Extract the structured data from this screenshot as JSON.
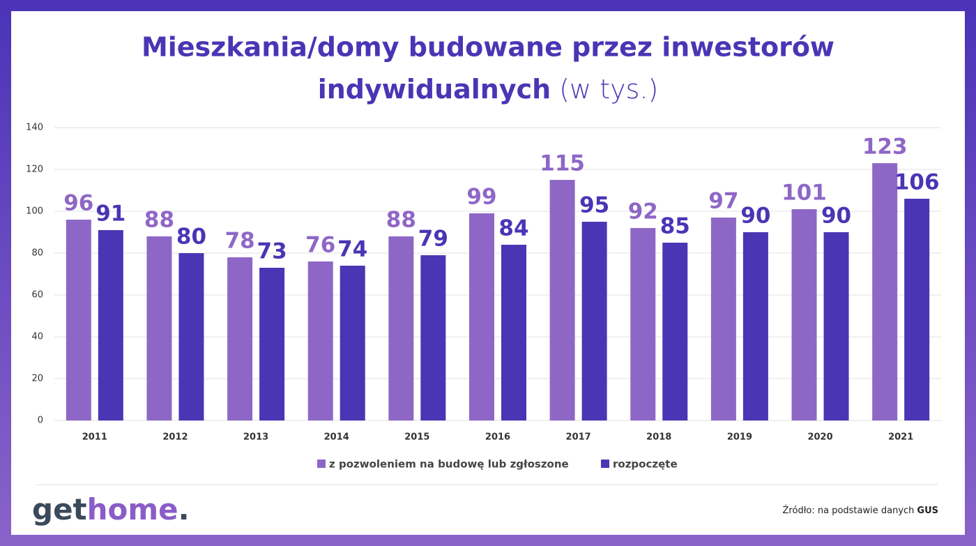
{
  "chart_data": {
    "type": "bar",
    "title": [
      "Mieszkania/domy budowane przez inwestorów",
      "indywidualnych"
    ],
    "title_unit": "(w tys.)",
    "categories": [
      "2011",
      "2012",
      "2013",
      "2014",
      "2015",
      "2016",
      "2017",
      "2018",
      "2019",
      "2020",
      "2021"
    ],
    "series": [
      {
        "name": "z pozwoleniem na budowę lub zgłoszone",
        "color": "#8e67c6",
        "values": [
          96,
          88,
          78,
          76,
          88,
          99,
          115,
          92,
          97,
          101,
          123
        ]
      },
      {
        "name": "rozpoczęte",
        "color": "#4a35b5",
        "values": [
          91,
          80,
          73,
          74,
          79,
          84,
          95,
          85,
          90,
          90,
          106
        ]
      }
    ],
    "ylim": [
      0,
      140
    ],
    "yticks": [
      0,
      20,
      40,
      60,
      80,
      100,
      120,
      140
    ],
    "grid": true,
    "legend": "bottom"
  },
  "footer": {
    "logo": [
      "get",
      "home",
      "."
    ],
    "source": "Źródło: na podstawie danych",
    "source_bold": "GUS"
  }
}
